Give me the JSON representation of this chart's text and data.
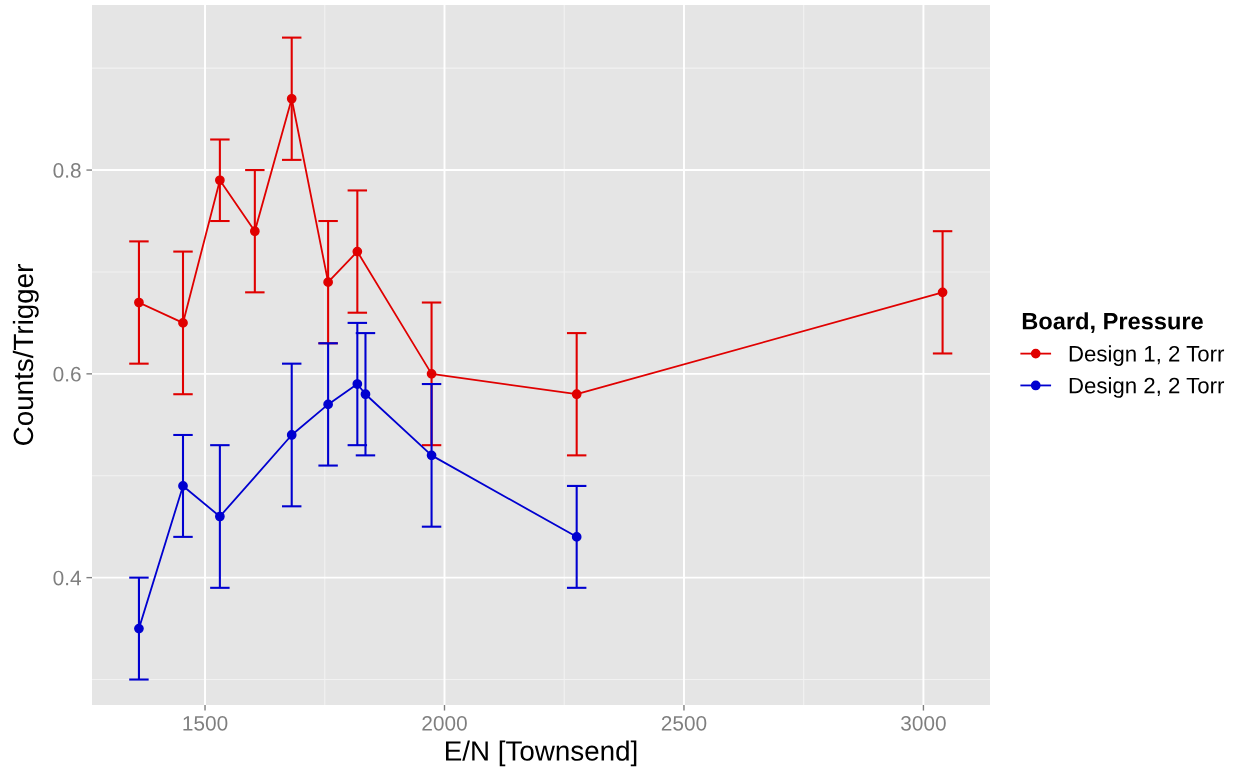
{
  "chart_data": {
    "type": "line",
    "xlabel": "E/N [Townsend]",
    "ylabel": "Counts/Trigger",
    "legend_title": "Board, Pressure",
    "xlim": [
      1264,
      3139
    ],
    "xticks": [
      1500,
      2000,
      2500,
      3000
    ],
    "ylim": [
      0.275,
      0.962
    ],
    "yticks": [
      0.4,
      0.6,
      0.8
    ],
    "grid": true,
    "legend": "right",
    "marker": "circle",
    "line_style": "solid",
    "series": [
      {
        "name": "Design 1, 2 Torr",
        "color": "#e00000",
        "x": [
          1362,
          1454,
          1531,
          1604,
          1681,
          1757,
          1818,
          1973,
          2276,
          3040
        ],
        "values": [
          0.67,
          0.65,
          0.79,
          0.74,
          0.87,
          0.69,
          0.72,
          0.6,
          0.58,
          0.68
        ],
        "errors": [
          0.06,
          0.07,
          0.04,
          0.06,
          0.06,
          0.06,
          0.06,
          0.07,
          0.06,
          0.06
        ]
      },
      {
        "name": "Design 2, 2 Torr",
        "color": "#0000d0",
        "x": [
          1362,
          1454,
          1531,
          1681,
          1757,
          1818,
          1835,
          1973,
          2276
        ],
        "values": [
          0.35,
          0.49,
          0.46,
          0.54,
          0.57,
          0.59,
          0.58,
          0.52,
          0.44
        ],
        "errors": [
          0.05,
          0.05,
          0.07,
          0.07,
          0.06,
          0.06,
          0.06,
          0.07,
          0.05
        ]
      }
    ]
  }
}
